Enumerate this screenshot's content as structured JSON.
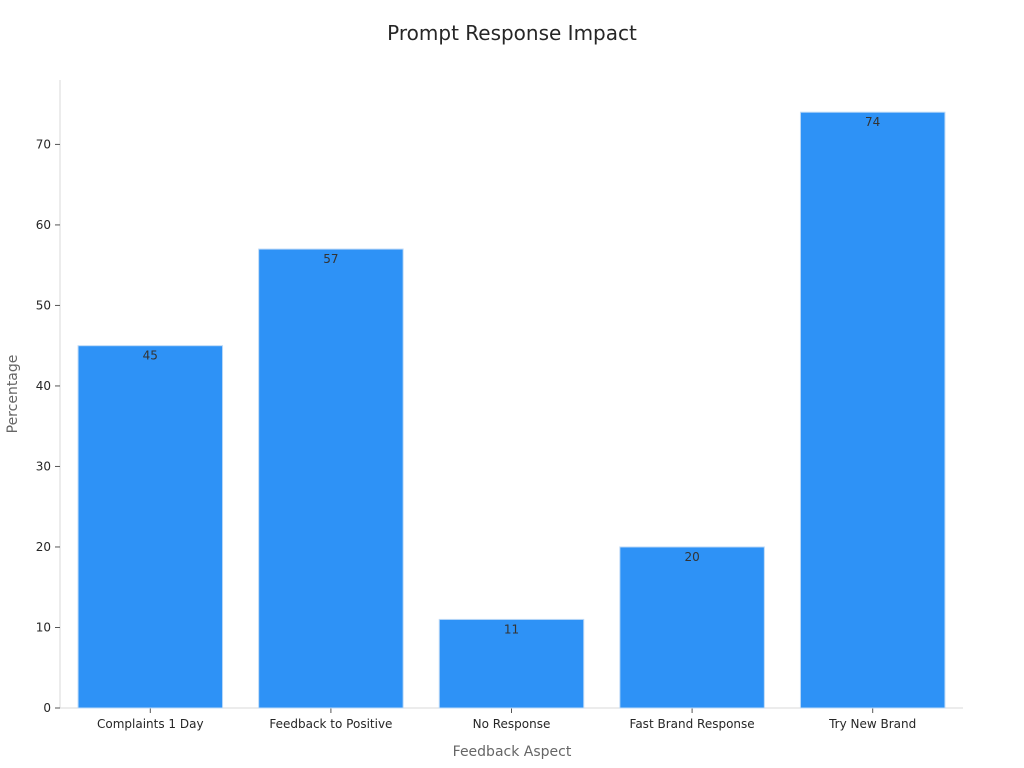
{
  "chart_data": {
    "type": "bar",
    "title": "Prompt Response Impact",
    "xlabel": "Feedback Aspect",
    "ylabel": "Percentage",
    "categories": [
      "Complaints 1 Day",
      "Feedback to Positive",
      "No Response",
      "Fast Brand Response",
      "Try New Brand"
    ],
    "values": [
      45,
      57,
      11,
      20,
      74
    ],
    "data_labels": [
      "45",
      "57",
      "11",
      "20",
      "74"
    ],
    "y_ticks": [
      0,
      10,
      20,
      30,
      40,
      50,
      60,
      70
    ],
    "y_tick_labels": [
      "0",
      "10",
      "20",
      "30",
      "40",
      "50",
      "60",
      "70"
    ],
    "ylim": [
      0,
      78
    ],
    "grid": false,
    "legend": "none",
    "bar_color": "#2e92f6",
    "bar_edge_color": "#bcd9f7"
  }
}
